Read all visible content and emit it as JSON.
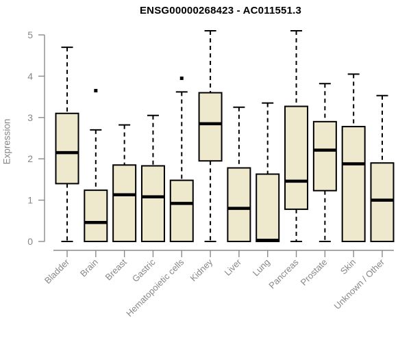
{
  "page": {
    "background": "#ffffff"
  },
  "chart_data": {
    "type": "boxplot",
    "title": "ENSG00000268423 - AC011551.3",
    "ylabel": "Expression",
    "xlabel": "",
    "ylim": [
      0,
      5
    ],
    "yticks": [
      0,
      1,
      2,
      3,
      4,
      5
    ],
    "grid": false,
    "legend": null,
    "categories": [
      "Bladder",
      "Brain",
      "Breast",
      "Gastric",
      "Hematopoietic cells",
      "Kidney",
      "Liver",
      "Lung",
      "Pancreas",
      "Prostate",
      "Skin",
      "Unknown / Other"
    ],
    "series": [
      {
        "name": "Bladder",
        "whisker_low": 0,
        "q1": 1.4,
        "median": 2.15,
        "q3": 3.1,
        "whisker_high": 4.7,
        "outliers": []
      },
      {
        "name": "Brain",
        "whisker_low": 0,
        "q1": 0.0,
        "median": 0.46,
        "q3": 1.24,
        "whisker_high": 2.7,
        "outliers": [
          3.65
        ]
      },
      {
        "name": "Breast",
        "whisker_low": 0,
        "q1": 0.0,
        "median": 1.13,
        "q3": 1.85,
        "whisker_high": 2.82,
        "outliers": []
      },
      {
        "name": "Gastric",
        "whisker_low": 0,
        "q1": 0.0,
        "median": 1.08,
        "q3": 1.83,
        "whisker_high": 3.05,
        "outliers": []
      },
      {
        "name": "Hematopoietic cells",
        "whisker_low": 0,
        "q1": 0.0,
        "median": 0.92,
        "q3": 1.48,
        "whisker_high": 3.62,
        "outliers": [
          3.95
        ]
      },
      {
        "name": "Kidney",
        "whisker_low": 0,
        "q1": 1.95,
        "median": 2.85,
        "q3": 3.6,
        "whisker_high": 5.1,
        "outliers": []
      },
      {
        "name": "Liver",
        "whisker_low": 0,
        "q1": 0.0,
        "median": 0.8,
        "q3": 1.78,
        "whisker_high": 3.25,
        "outliers": []
      },
      {
        "name": "Lung",
        "whisker_low": 0,
        "q1": 0.0,
        "median": 0.03,
        "q3": 1.63,
        "whisker_high": 3.35,
        "outliers": []
      },
      {
        "name": "Pancreas",
        "whisker_low": 0,
        "q1": 0.78,
        "median": 1.46,
        "q3": 3.27,
        "whisker_high": 5.1,
        "outliers": []
      },
      {
        "name": "Prostate",
        "whisker_low": 0,
        "q1": 1.23,
        "median": 2.21,
        "q3": 2.9,
        "whisker_high": 3.82,
        "outliers": []
      },
      {
        "name": "Skin",
        "whisker_low": 0,
        "q1": 0.0,
        "median": 1.88,
        "q3": 2.78,
        "whisker_high": 4.05,
        "outliers": []
      },
      {
        "name": "Unknown / Other",
        "whisker_low": 0,
        "q1": 0.0,
        "median": 1.0,
        "q3": 1.9,
        "whisker_high": 3.53,
        "outliers": []
      }
    ],
    "colors": {
      "box_fill": "#EEE8CD",
      "box_border": "#000000",
      "median": "#000000",
      "whisker": "#000000",
      "outlier": "#000000",
      "axis": "#8a8a8a",
      "tick_label": "#878787",
      "title": "#000000"
    }
  }
}
